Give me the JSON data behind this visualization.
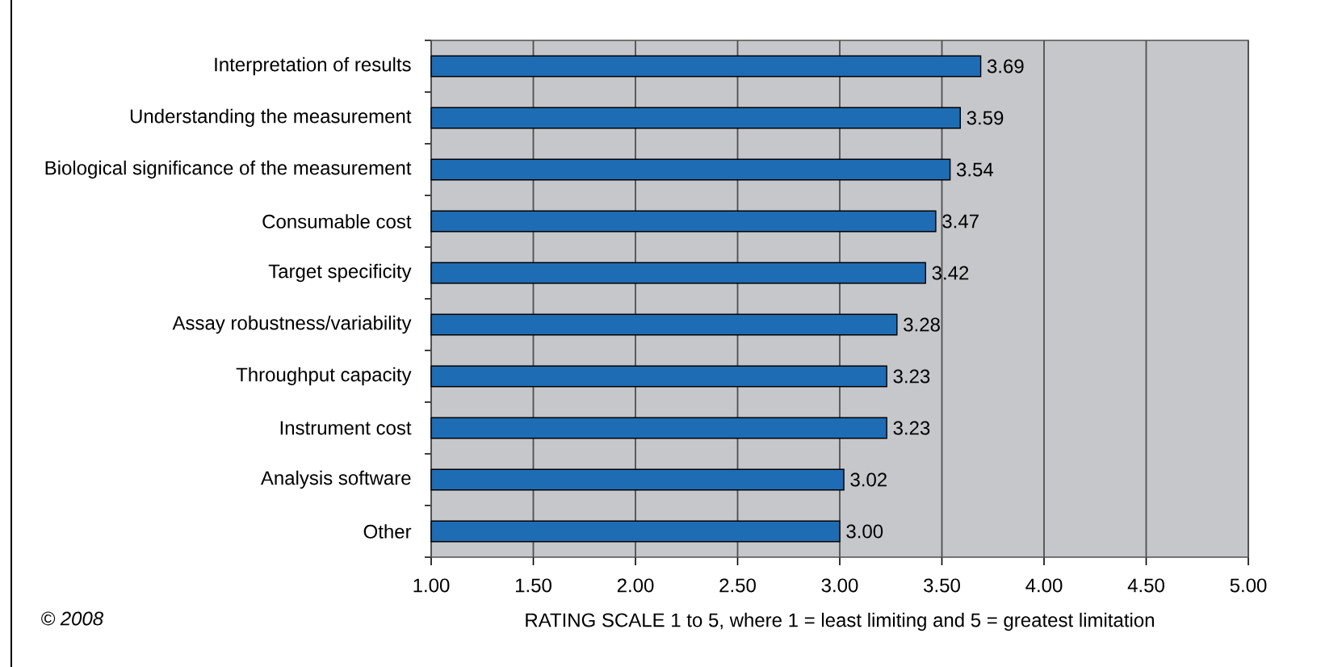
{
  "chart_data": {
    "type": "bar",
    "orientation": "horizontal",
    "categories": [
      "Interpretation of results",
      "Understanding the measurement",
      "Biological significance of the measurement",
      "Consumable cost",
      "Target specificity",
      "Assay robustness/variability",
      "Throughput capacity",
      "Instrument cost",
      "Analysis software",
      "Other"
    ],
    "values": [
      3.69,
      3.59,
      3.54,
      3.47,
      3.42,
      3.28,
      3.23,
      3.23,
      3.02,
      3.0
    ],
    "value_labels": [
      "3.69",
      "3.59",
      "3.54",
      "3.47",
      "3.42",
      "3.28",
      "3.23",
      "3.23",
      "3.02",
      "3.00"
    ],
    "color": "#1e6cb4",
    "xlabel": "RATING SCALE 1 to 5, where 1 = least limiting and 5 = greatest limitation",
    "xlim": [
      1,
      5
    ],
    "xticks": [
      {
        "value": 1,
        "label": "1.00"
      },
      {
        "value": 1.5,
        "label": "1.50"
      },
      {
        "value": 2,
        "label": "2.00"
      },
      {
        "value": 2.5,
        "label": "2.50"
      },
      {
        "value": 3,
        "label": "3.00"
      },
      {
        "value": 3.5,
        "label": "3.50"
      },
      {
        "value": 4,
        "label": "4.00"
      },
      {
        "value": 4.5,
        "label": "4.50"
      },
      {
        "value": 5,
        "label": "5.00"
      }
    ],
    "grid": "x",
    "annotations": [
      "© 2008"
    ]
  }
}
